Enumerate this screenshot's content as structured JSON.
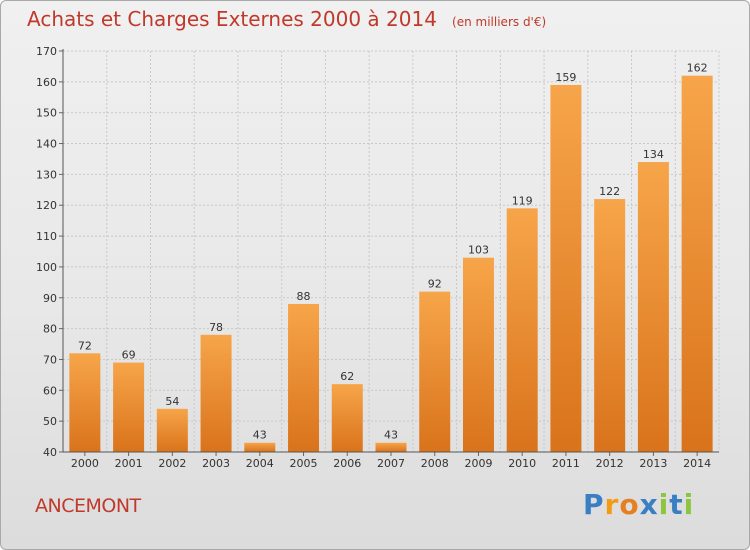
{
  "title": "Achats et Charges Externes 2000 à 2014",
  "unit": "(en milliers d'€)",
  "commune": "ANCEMONT",
  "logo": {
    "text": "Proxiti",
    "letters": [
      "P",
      "r",
      "o",
      "x",
      "i",
      "t",
      "i"
    ],
    "colors": [
      "#3a7fc4",
      "#f39c12",
      "#e67e22",
      "#3a7fc4",
      "#8cc63f",
      "#3a7fc4",
      "#8cc63f"
    ]
  },
  "colors": {
    "title": "#c0392b",
    "bar_light": "#f7a54a",
    "bar_dark": "#d9731b"
  },
  "chart_data": {
    "type": "bar",
    "categories": [
      "2000",
      "2001",
      "2002",
      "2003",
      "2004",
      "2005",
      "2006",
      "2007",
      "2008",
      "2009",
      "2010",
      "2011",
      "2012",
      "2013",
      "2014"
    ],
    "values": [
      72,
      69,
      54,
      78,
      43,
      88,
      62,
      43,
      92,
      103,
      119,
      159,
      122,
      134,
      162
    ],
    "ylim": [
      40,
      170
    ],
    "yticks": [
      40,
      50,
      60,
      70,
      80,
      90,
      100,
      110,
      120,
      130,
      140,
      150,
      160,
      170
    ],
    "grid": true
  }
}
